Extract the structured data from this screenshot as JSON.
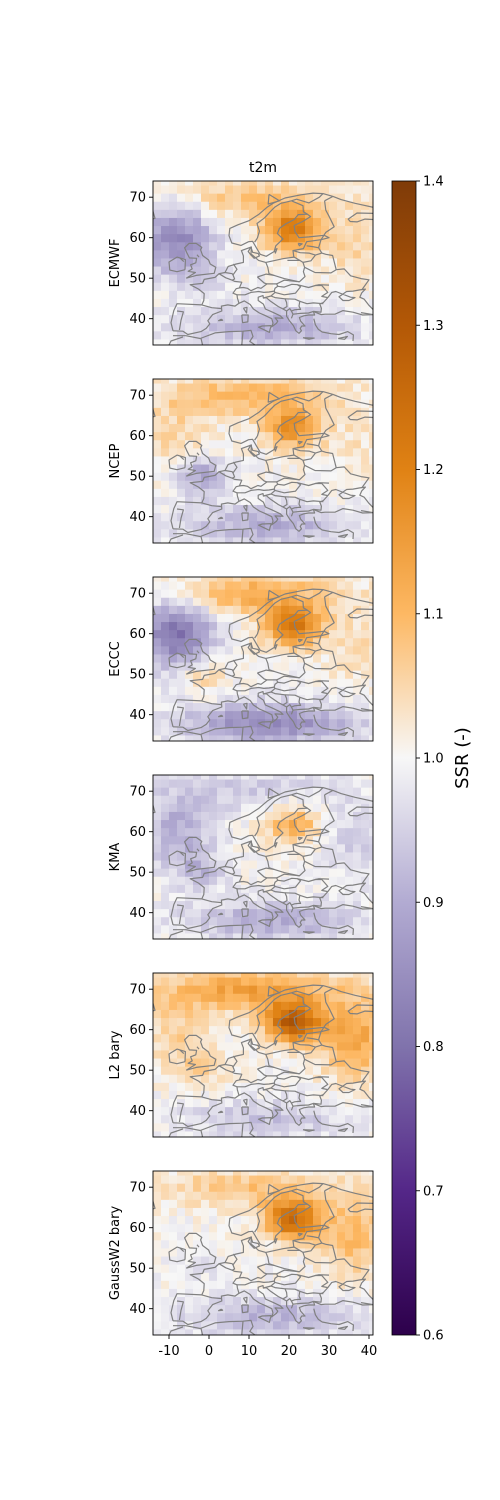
{
  "chart_data": {
    "type": "heatmap",
    "title": "t2m",
    "xlim": [
      -14,
      41
    ],
    "ylim": [
      33.5,
      74
    ],
    "x_ticks": [
      "-10",
      "0",
      "10",
      "20",
      "30",
      "40"
    ],
    "y_ticks": [
      "40",
      "50",
      "60",
      "70"
    ],
    "x_tick_values": [
      -10,
      0,
      10,
      20,
      30,
      40
    ],
    "y_tick_values": [
      40,
      50,
      60,
      70
    ],
    "colormap": "PuOr_r",
    "colorbar": {
      "label": "SSR (-)",
      "range": [
        0.6,
        1.4
      ],
      "ticks": [
        "0.6",
        "0.7",
        "0.8",
        "0.9",
        "1.0",
        "1.1",
        "1.2",
        "1.3",
        "1.4"
      ],
      "tick_values": [
        0.6,
        0.7,
        0.8,
        0.9,
        1.0,
        1.1,
        1.2,
        1.3,
        1.4
      ]
    },
    "panels": [
      {
        "model": "ECMWF",
        "peak_ssr": 1.26,
        "mean_ssr": 0.98,
        "fields": {
          "north": 1.08,
          "scandinavia": 1.22,
          "atlantic_north": 0.84,
          "west_europe": 0.96,
          "mediterranean": 0.9,
          "east": 1.05
        }
      },
      {
        "model": "NCEP",
        "peak_ssr": 1.21,
        "mean_ssr": 1.0,
        "fields": {
          "north": 1.1,
          "scandinavia": 1.17,
          "atlantic_north": 1.05,
          "west_europe": 0.88,
          "mediterranean": 0.9,
          "east": 1.03
        }
      },
      {
        "model": "ECCC",
        "peak_ssr": 1.27,
        "mean_ssr": 0.97,
        "fields": {
          "north": 1.12,
          "scandinavia": 1.23,
          "atlantic_north": 0.8,
          "west_europe": 1.07,
          "mediterranean": 0.84,
          "east": 1.04
        }
      },
      {
        "model": "KMA",
        "peak_ssr": 1.17,
        "mean_ssr": 0.93,
        "fields": {
          "north": 0.94,
          "scandinavia": 1.12,
          "atlantic_north": 0.9,
          "west_europe": 0.93,
          "mediterranean": 0.9,
          "east": 0.95
        }
      },
      {
        "model": "L2 bary",
        "peak_ssr": 1.34,
        "mean_ssr": 1.07,
        "fields": {
          "north": 1.14,
          "scandinavia": 1.29,
          "atlantic_north": 1.06,
          "west_europe": 1.05,
          "mediterranean": 0.93,
          "east": 1.14
        }
      },
      {
        "model": "GaussW2 bary",
        "peak_ssr": 1.3,
        "mean_ssr": 1.03,
        "fields": {
          "north": 1.08,
          "scandinavia": 1.25,
          "atlantic_north": 1.0,
          "west_europe": 0.98,
          "mediterranean": 0.91,
          "east": 1.1
        }
      }
    ]
  }
}
